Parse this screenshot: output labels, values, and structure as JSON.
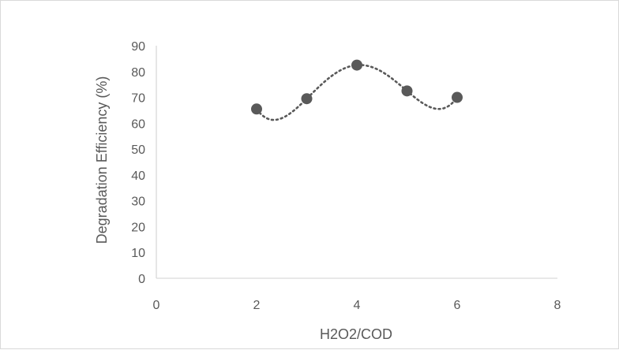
{
  "chart_data": {
    "type": "scatter",
    "xlabel": "H2O2/COD",
    "ylabel": "Degradation Efficiency (%)",
    "xlim": [
      0,
      8
    ],
    "ylim": [
      0,
      90
    ],
    "xticks": [
      0,
      2,
      4,
      6,
      8
    ],
    "yticks": [
      0,
      10,
      20,
      30,
      40,
      50,
      60,
      70,
      80,
      90
    ],
    "grid": false,
    "legend": "none",
    "trendline": "dotted smooth polynomial",
    "series": [
      {
        "x": [
          2,
          3,
          4,
          5,
          6
        ],
        "y": [
          65.5,
          69.5,
          82.5,
          72.5,
          70
        ]
      }
    ],
    "colors": {
      "marker": "#595959",
      "trendline": "#595959",
      "axis": "#d9d9d9",
      "text": "#595959"
    }
  }
}
